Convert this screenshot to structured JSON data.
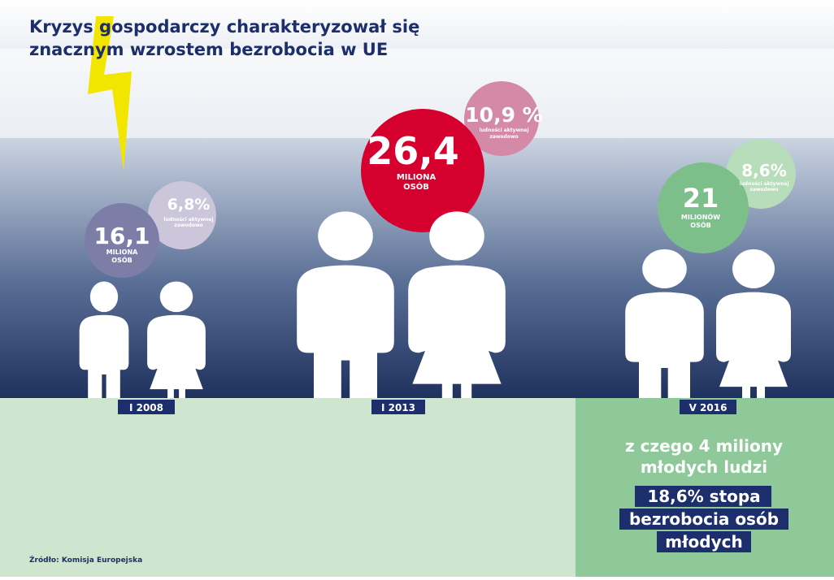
{
  "title": {
    "line1": "Kryzys gospodarczy charakteryzował się",
    "line2": "znacznym wzrostem bezrobocia w UE"
  },
  "groups": [
    {
      "date": "I 2008",
      "value": "16,1",
      "unit_line1": "MILIONA",
      "unit_line2": "OSÓB",
      "percent": "6,8%",
      "percent_note_line1": "ludności aktywnej",
      "percent_note_line2": "zawodowo"
    },
    {
      "date": "I 2013",
      "value": "26,4",
      "unit_line1": "MILIONA",
      "unit_line2": "OSÓB",
      "percent": "10,9 %",
      "percent_note_line1": "ludności aktywnej",
      "percent_note_line2": "zawodowo"
    },
    {
      "date": "V 2016",
      "value": "21",
      "unit_line1": "MILIONÓW",
      "unit_line2": "OSÓB",
      "percent": "8,6%",
      "percent_note_line1": "ludności aktywnej",
      "percent_note_line2": "zawodowo"
    }
  ],
  "youth": {
    "line1": "z czego 4 miliony",
    "line2": "młodych ludzi",
    "rate_lines": [
      "18,6% stopa",
      "bezrobocia osób",
      "młodych"
    ]
  },
  "source": "Źródło: Komisja Europejska"
}
